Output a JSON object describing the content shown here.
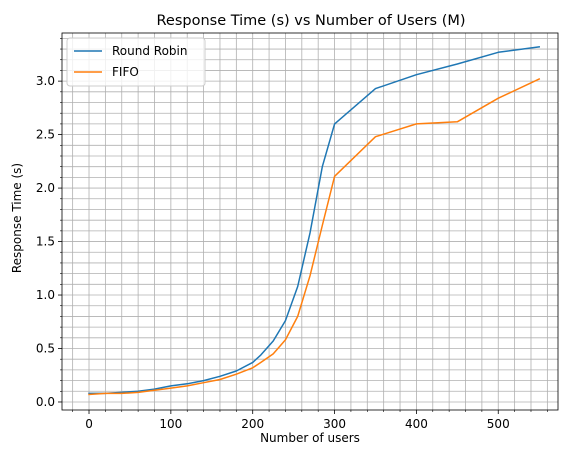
{
  "chart_data": {
    "type": "line",
    "title": "Response Time (s) vs Number of Users (M)",
    "xlabel": "Number of users",
    "ylabel": "Response Time (s)",
    "xlim": [
      -33,
      573
    ],
    "ylim": [
      -0.075,
      3.45
    ],
    "xticks": [
      0,
      100,
      200,
      300,
      400,
      500
    ],
    "yticks": [
      0.0,
      0.5,
      1.0,
      1.5,
      2.0,
      2.5,
      3.0
    ],
    "ytick_labels": [
      "0.0",
      "0.5",
      "1.0",
      "1.5",
      "2.0",
      "2.5",
      "3.0"
    ],
    "grid": "major and minor",
    "legend_position": "top-left",
    "series": [
      {
        "name": "Round Robin",
        "color": "#1f77b4",
        "x": [
          0,
          20,
          40,
          60,
          80,
          100,
          120,
          140,
          160,
          180,
          200,
          210,
          225,
          240,
          255,
          270,
          285,
          300,
          350,
          400,
          450,
          500,
          550
        ],
        "y": [
          0.08,
          0.08,
          0.09,
          0.1,
          0.12,
          0.15,
          0.17,
          0.2,
          0.24,
          0.29,
          0.37,
          0.44,
          0.57,
          0.76,
          1.08,
          1.58,
          2.2,
          2.6,
          2.93,
          3.06,
          3.16,
          3.27,
          3.32
        ]
      },
      {
        "name": "FIFO",
        "color": "#ff7f0e",
        "x": [
          0,
          20,
          40,
          60,
          80,
          100,
          120,
          140,
          160,
          180,
          200,
          210,
          225,
          240,
          255,
          270,
          285,
          300,
          350,
          400,
          450,
          500,
          550
        ],
        "y": [
          0.07,
          0.08,
          0.08,
          0.09,
          0.11,
          0.13,
          0.15,
          0.18,
          0.21,
          0.26,
          0.32,
          0.37,
          0.45,
          0.58,
          0.8,
          1.18,
          1.65,
          2.11,
          2.48,
          2.6,
          2.62,
          2.84,
          3.02
        ]
      }
    ]
  }
}
